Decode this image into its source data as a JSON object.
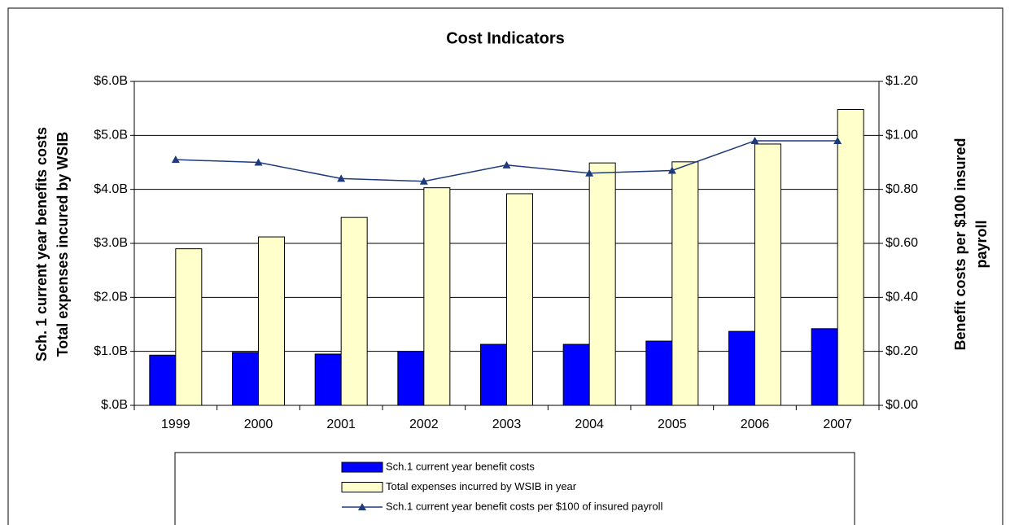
{
  "chart_data": {
    "type": "bar",
    "title": "Cost Indicators",
    "categories": [
      "1999",
      "2000",
      "2001",
      "2002",
      "2003",
      "2004",
      "2005",
      "2006",
      "2007"
    ],
    "y_label": [
      "Sch. 1 current year benefits costs",
      "Total expenses incured by WSIB"
    ],
    "y2_label": [
      "Benefit costs per $100 insured",
      "payroll"
    ],
    "ylim": [
      0,
      6
    ],
    "yticks": [
      {
        "value": 0,
        "label": "$.0B"
      },
      {
        "value": 1,
        "label": "$1.0B"
      },
      {
        "value": 2,
        "label": "$2.0B"
      },
      {
        "value": 3,
        "label": "$3.0B"
      },
      {
        "value": 4,
        "label": "$4.0B"
      },
      {
        "value": 5,
        "label": "$5.0B"
      },
      {
        "value": 6,
        "label": "$6.0B"
      }
    ],
    "y2lim": [
      0,
      1.2
    ],
    "y2ticks": [
      {
        "value": 0,
        "label": "$0.00"
      },
      {
        "value": 0.2,
        "label": "$0.20"
      },
      {
        "value": 0.4,
        "label": "$0.40"
      },
      {
        "value": 0.6,
        "label": "$0.60"
      },
      {
        "value": 0.8,
        "label": "$0.80"
      },
      {
        "value": 1.0,
        "label": "$1.00"
      },
      {
        "value": 1.2,
        "label": "$1.20"
      }
    ],
    "grid": true,
    "series": [
      {
        "name": "Sch.1 current year benefit costs",
        "type": "bar",
        "color": "#0000ff",
        "values": [
          0.93,
          0.98,
          0.95,
          1.0,
          1.13,
          1.13,
          1.19,
          1.37,
          1.42
        ]
      },
      {
        "name": "Total expenses incurred by WSIB in year",
        "type": "bar",
        "color": "#ffffcc",
        "values": [
          2.9,
          3.12,
          3.48,
          4.03,
          3.92,
          4.49,
          4.51,
          4.84,
          5.48
        ]
      },
      {
        "name": "Sch.1 current year benefit costs per $100 of insured payroll",
        "type": "line",
        "axis": "y2",
        "color": "#1f3a7a",
        "values": [
          0.91,
          0.9,
          0.84,
          0.83,
          0.89,
          0.86,
          0.87,
          0.98,
          0.98
        ]
      }
    ]
  }
}
